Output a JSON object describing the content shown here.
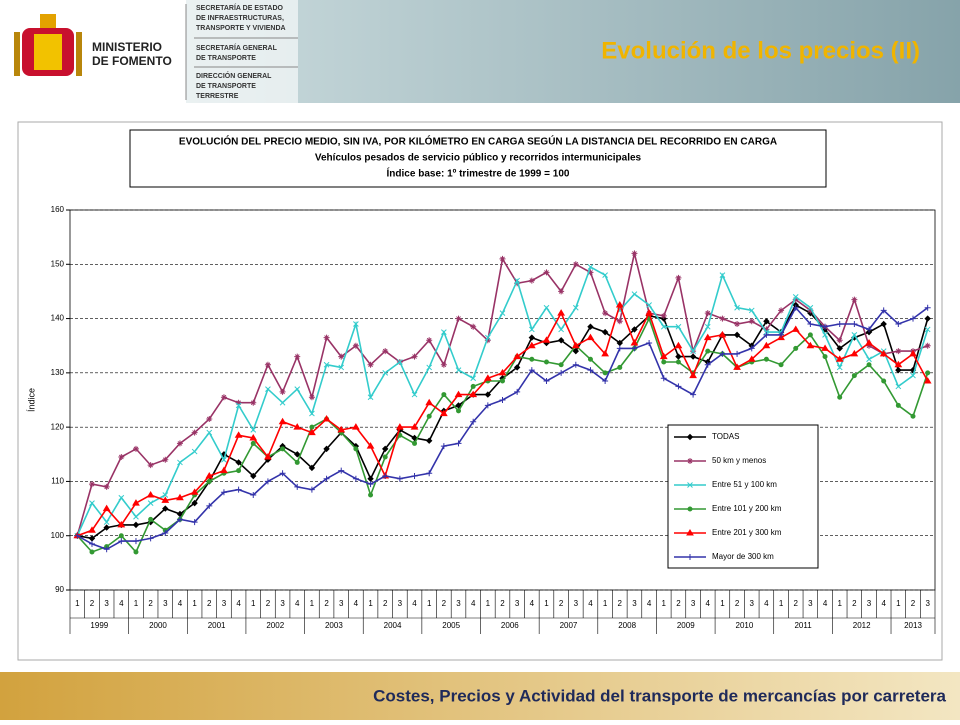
{
  "header": {
    "logo": [
      "MINISTERIO",
      "DE FOMENTO"
    ],
    "secretaria_estado": [
      "SECRETARÍA DE ESTADO",
      "DE INFRAESTRUCTURAS,",
      "TRANSPORTE Y VIVIENDA"
    ],
    "secretaria_general": [
      "SECRETARÍA GENERAL",
      "DE TRANSPORTE"
    ],
    "direccion_general": [
      "DIRECCIÓN GENERAL",
      "DE TRANSPORTE",
      "TERRESTRE"
    ],
    "title": "Evolución de los precios (II)"
  },
  "footer": "Costes, Precios y Actividad del transporte de mercancías por carretera",
  "chart_data": {
    "type": "line",
    "title_lines": [
      "EVOLUCIÓN DEL PRECIO MEDIO, SIN IVA, POR KILÓMETRO EN CARGA SEGÚN LA DISTANCIA DEL RECORRIDO EN CARGA",
      "Vehículos pesados de servicio público y recorridos intermunicipales",
      "Índice base: 1º trimestre de 1999 = 100"
    ],
    "y_label": "Índice",
    "categories": [
      "1",
      "2",
      "3",
      "4",
      "1",
      "2",
      "3",
      "4",
      "1",
      "2",
      "3",
      "4",
      "1",
      "2",
      "3",
      "4",
      "1",
      "2",
      "3",
      "4",
      "1",
      "2",
      "3",
      "4",
      "1",
      "2",
      "3",
      "4",
      "1",
      "2",
      "3",
      "4",
      "1",
      "2",
      "3",
      "4",
      "1",
      "2",
      "3",
      "4",
      "1",
      "2",
      "3",
      "4",
      "1",
      "2",
      "3",
      "4",
      "1",
      "2",
      "3",
      "4",
      "1",
      "2",
      "3",
      "4",
      "1",
      "2",
      "3"
    ],
    "year_labels": [
      "1999",
      "2000",
      "2001",
      "2002",
      "2003",
      "2004",
      "2005",
      "2006",
      "2007",
      "2008",
      "2009",
      "2010",
      "2011",
      "2012",
      "2013"
    ],
    "ylim": [
      90,
      160
    ],
    "yticks": [
      90,
      100,
      110,
      120,
      130,
      140,
      150,
      160
    ],
    "grid": true,
    "series": [
      {
        "name": "TODAS",
        "color": "#000000",
        "marker": "diamond",
        "values": [
          100,
          99.5,
          101.5,
          102,
          102,
          102.5,
          105,
          104,
          106,
          110,
          115,
          113.5,
          111,
          114,
          116.5,
          115,
          112.5,
          116,
          119,
          116.5,
          110.5,
          116,
          119.5,
          118,
          117.5,
          123,
          124,
          126,
          126,
          129,
          131,
          136.5,
          135.5,
          136,
          134,
          138.5,
          137.5,
          135.5,
          138,
          140.5,
          140,
          133,
          133,
          132,
          137,
          137,
          135,
          139.5,
          137.5,
          142.5,
          141,
          138,
          134.5,
          136.5,
          137.5,
          139,
          130.5,
          130.5,
          140
        ]
      },
      {
        "name": "50 km y menos",
        "color": "#993366",
        "marker": "asterisk",
        "values": [
          100,
          109.5,
          109,
          114.5,
          116,
          113,
          114,
          117,
          119,
          121.5,
          125.5,
          124.5,
          124.5,
          131.5,
          126.5,
          133,
          125.5,
          136.5,
          133,
          135,
          131.5,
          134,
          132,
          133,
          136,
          131.5,
          140,
          138.5,
          136,
          151,
          146.5,
          147,
          148.5,
          145,
          150,
          148.5,
          141,
          139.5,
          152,
          141,
          140.5,
          147.5,
          134,
          141,
          140,
          139,
          139.5,
          138,
          141.5,
          143.5,
          141.5,
          138.5,
          136,
          143.5,
          135,
          133.5,
          134,
          134,
          135
        ]
      },
      {
        "name": "Entre 51 y 100 km",
        "color": "#33cccc",
        "marker": "x",
        "values": [
          100,
          106,
          102.5,
          107,
          103.5,
          106,
          107.5,
          113.5,
          115.5,
          119,
          114,
          124,
          119.5,
          127,
          124.5,
          127,
          122.5,
          131.5,
          131,
          139,
          125.5,
          130,
          132,
          126,
          131,
          137.5,
          130.5,
          129,
          136.5,
          141,
          147,
          138,
          142,
          138,
          142,
          149.5,
          148,
          141.5,
          144.5,
          142.5,
          138.5,
          138.5,
          134,
          138.5,
          148,
          142,
          141.5,
          137.5,
          137.5,
          144,
          142,
          137,
          131,
          137,
          132.5,
          134,
          127.5,
          129.5,
          138
        ]
      },
      {
        "name": "Entre 101 y 200 km",
        "color": "#339933",
        "marker": "circle",
        "values": [
          100,
          97,
          98,
          100,
          97,
          103,
          101,
          103,
          107.5,
          110,
          111.5,
          112,
          117,
          114.5,
          116,
          113.5,
          120,
          121.5,
          119,
          116,
          107.5,
          114.5,
          118.5,
          117,
          122,
          126,
          123,
          127.5,
          128.5,
          128.5,
          133,
          132.5,
          132,
          131.5,
          135,
          132.5,
          130,
          131,
          134.5,
          140,
          132,
          132,
          130,
          134,
          133.5,
          131,
          132,
          132.5,
          131.5,
          134.5,
          137,
          133,
          125.5,
          129.5,
          131.5,
          128.5,
          124,
          122,
          130
        ]
      },
      {
        "name": "Entre 201 y 300 km",
        "color": "#ff0000",
        "marker": "triangle",
        "values": [
          100,
          101,
          105,
          102,
          106,
          107.5,
          106.5,
          107,
          108,
          111,
          112,
          118.5,
          118,
          114.5,
          121,
          120,
          119,
          121.5,
          119.5,
          120,
          116.5,
          111,
          120,
          120,
          124.5,
          122.5,
          126,
          126,
          129,
          130,
          133,
          135,
          136,
          141,
          135,
          136.5,
          133.5,
          142.5,
          135.5,
          141,
          133,
          135,
          129.5,
          136.5,
          137,
          131,
          132.5,
          135,
          136.5,
          138,
          135,
          134.5,
          132.5,
          133.5,
          135.5,
          133.5,
          131.5,
          133.5,
          128.5
        ]
      },
      {
        "name": "Mayor de 300 km",
        "color": "#3333aa",
        "marker": "plus",
        "values": [
          100,
          98.5,
          97.5,
          99,
          99,
          99.5,
          100.5,
          103,
          102.5,
          105.5,
          108,
          108.5,
          107.5,
          110,
          111.5,
          109,
          108.5,
          110.5,
          112,
          110.5,
          109.5,
          111,
          110.5,
          111,
          111.5,
          116.5,
          117,
          121,
          124,
          125,
          126.5,
          130.5,
          128.5,
          130,
          131.5,
          130.5,
          128.5,
          134.5,
          134.5,
          135.5,
          129,
          127.5,
          126,
          131.5,
          133.5,
          133.5,
          134.5,
          137,
          137,
          142,
          139,
          138.5,
          139,
          139,
          138,
          141.5,
          139,
          140,
          142
        ]
      }
    ]
  }
}
